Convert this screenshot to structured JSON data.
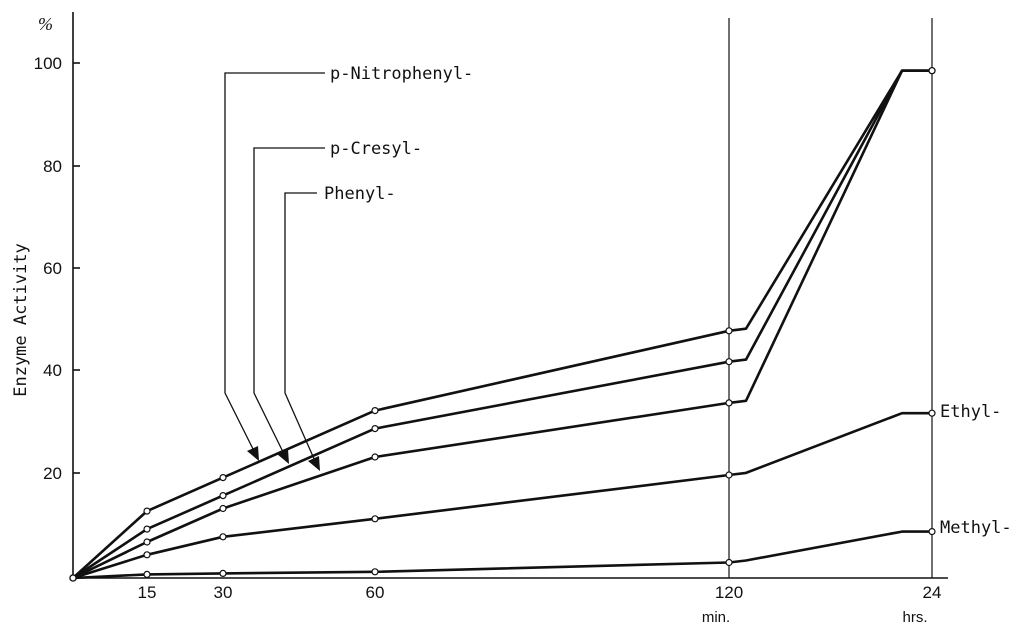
{
  "chart_data": {
    "type": "line",
    "title": "",
    "ylabel": "Enzyme Activity",
    "y_unit": "%",
    "ylim": [
      0,
      100
    ],
    "y_ticks": [
      "20",
      "40",
      "60",
      "80",
      "100"
    ],
    "x_ticks": [
      "15",
      "30",
      "60",
      "120",
      "24"
    ],
    "x_unit_labels": [
      "min.",
      "hrs."
    ],
    "x": [
      "0 min",
      "15 min",
      "30 min",
      "60 min",
      "120 min",
      "24 hrs"
    ],
    "grid": false,
    "series": [
      {
        "name": "p-Nitrophenyl-",
        "values": [
          0,
          13,
          19.5,
          32.5,
          48,
          98.5
        ]
      },
      {
        "name": "p-Cresyl-",
        "values": [
          0,
          9.5,
          16,
          29,
          42,
          98.5
        ]
      },
      {
        "name": "Phenyl-",
        "values": [
          0,
          7,
          13.5,
          23.5,
          34,
          98.5
        ]
      },
      {
        "name": "Ethyl-",
        "values": [
          0,
          4.5,
          8,
          11.5,
          20,
          32
        ]
      },
      {
        "name": "Methyl-",
        "values": [
          0,
          0.7,
          0.9,
          1.2,
          3,
          9
        ]
      }
    ]
  }
}
